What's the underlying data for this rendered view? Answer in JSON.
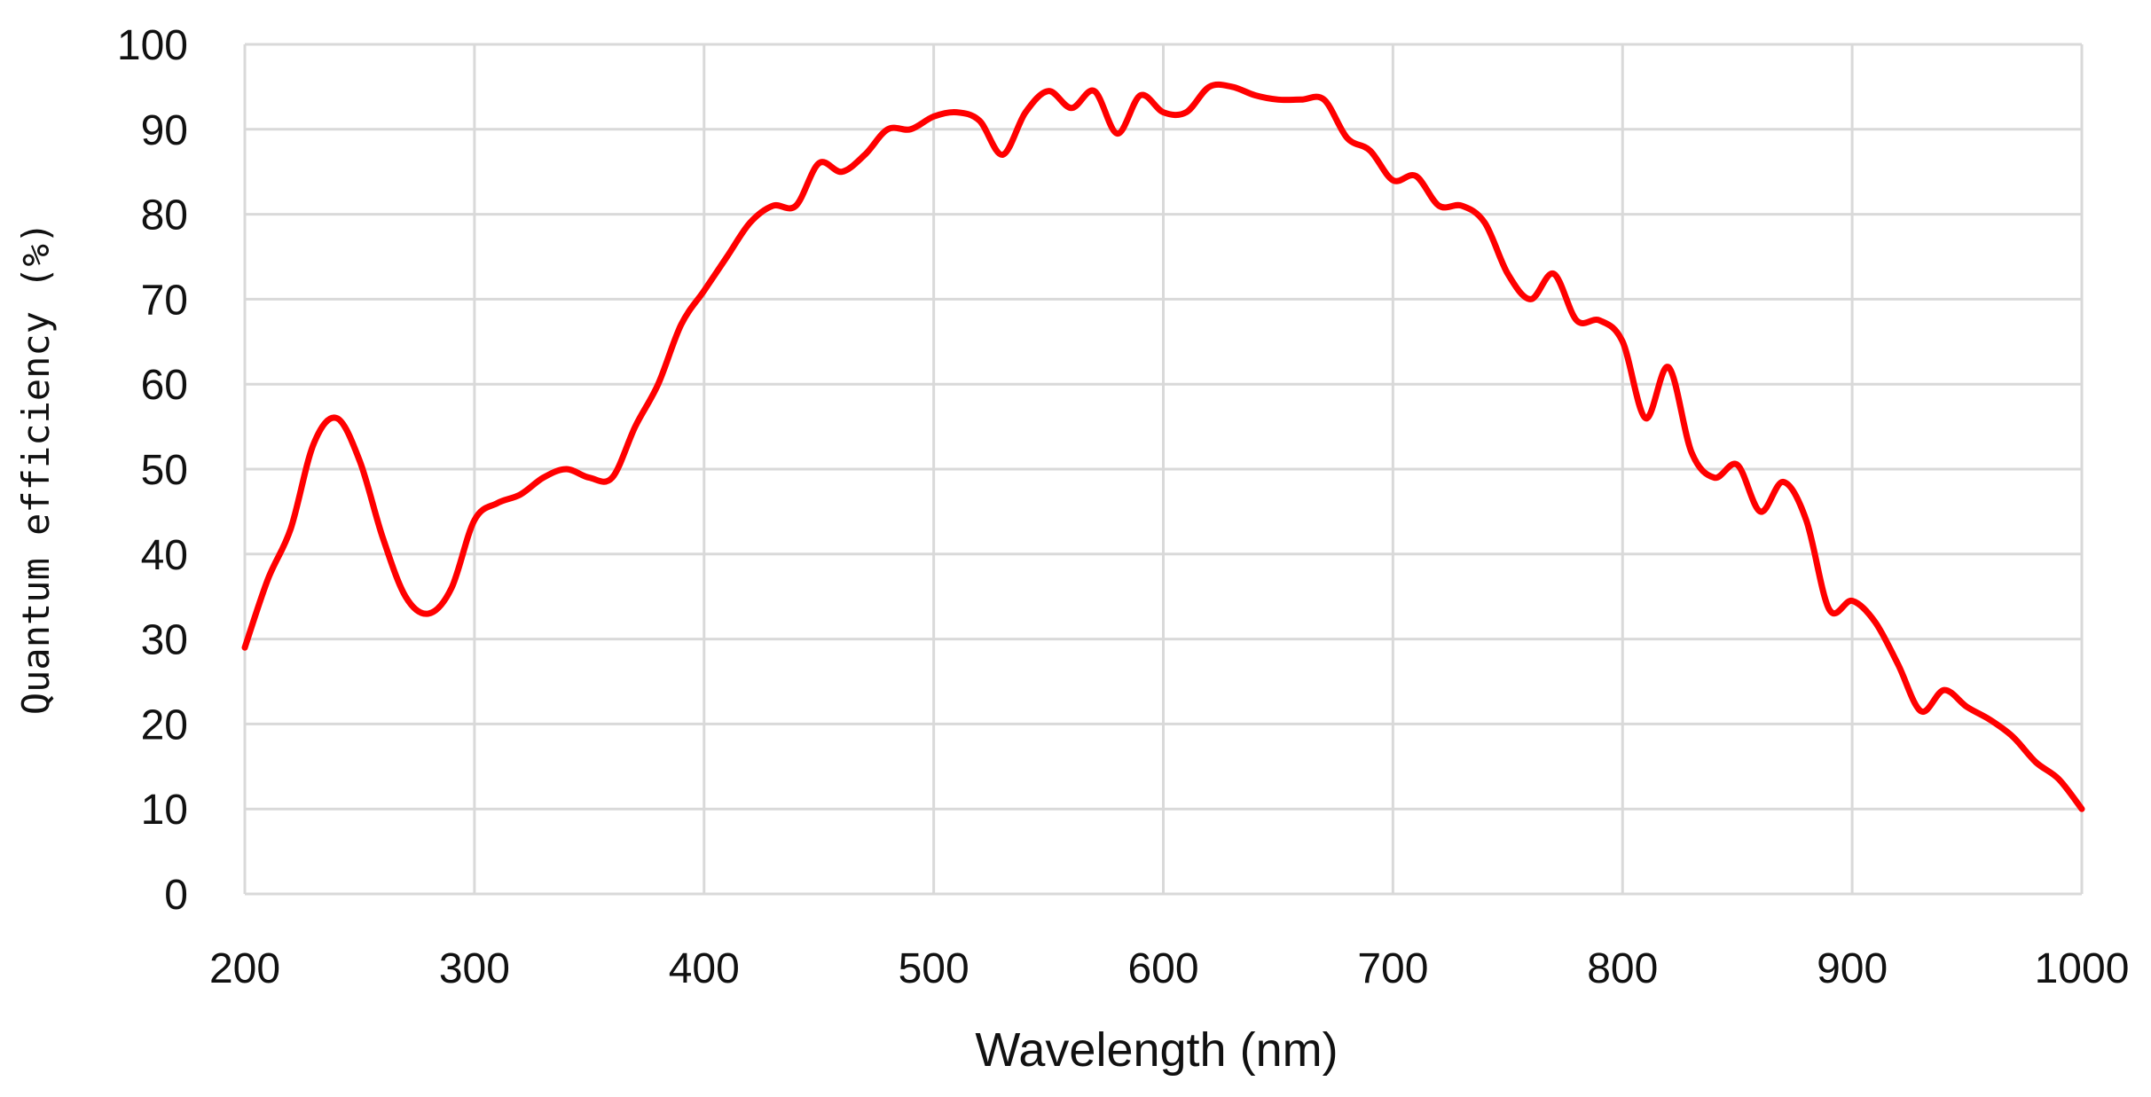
{
  "chart_data": {
    "type": "line",
    "title": "",
    "xlabel": "Wavelength (nm)",
    "ylabel": "Quantum efficiency (%)",
    "xlim": [
      200,
      1000
    ],
    "ylim": [
      0,
      100
    ],
    "x_ticks": [
      "200",
      "300",
      "400",
      "500",
      "600",
      "700",
      "800",
      "900",
      "1000"
    ],
    "y_ticks": [
      "0",
      "10",
      "20",
      "30",
      "40",
      "50",
      "60",
      "70",
      "80",
      "90",
      "100"
    ],
    "grid": true,
    "legend": "none",
    "series": [
      {
        "color": "#ff0000",
        "x": [
          200,
          210,
          220,
          230,
          240,
          250,
          260,
          270,
          280,
          290,
          300,
          310,
          320,
          330,
          340,
          350,
          360,
          370,
          380,
          390,
          400,
          410,
          420,
          430,
          440,
          450,
          460,
          470,
          480,
          490,
          500,
          510,
          520,
          530,
          540,
          550,
          560,
          570,
          580,
          590,
          600,
          610,
          620,
          630,
          640,
          650,
          660,
          670,
          680,
          690,
          700,
          710,
          720,
          730,
          740,
          750,
          760,
          770,
          780,
          790,
          800,
          810,
          820,
          830,
          840,
          850,
          860,
          870,
          880,
          890,
          900,
          910,
          920,
          930,
          940,
          950,
          960,
          970,
          980,
          990,
          1000
        ],
        "y": [
          29,
          37,
          43,
          53,
          56,
          51,
          42,
          35,
          33,
          36,
          44,
          46,
          47,
          49,
          50,
          49,
          49,
          55,
          60,
          67,
          71,
          75,
          79,
          81,
          81,
          86,
          85,
          87,
          90,
          90,
          91.5,
          92,
          91,
          87,
          92,
          94.5,
          92.5,
          94.5,
          89.5,
          94,
          92,
          92,
          95,
          95,
          94,
          93.5,
          93.5,
          93.5,
          89,
          87.5,
          84,
          84.5,
          81,
          81,
          79,
          73,
          70,
          73,
          67.5,
          67.5,
          65,
          56,
          62,
          52,
          49,
          50.5,
          45,
          48.5,
          44,
          33.5,
          34.5,
          32,
          27,
          21.5,
          24,
          22,
          20.5,
          18.5,
          15.5,
          13.5,
          10
        ]
      }
    ]
  }
}
